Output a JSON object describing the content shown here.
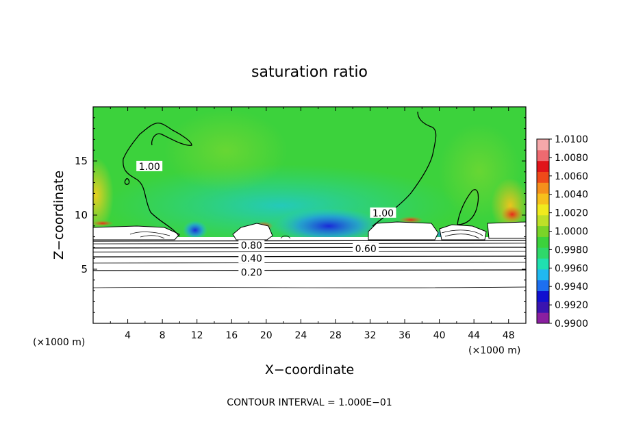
{
  "chart_data": {
    "type": "heatmap",
    "title": "saturation ratio",
    "xlabel": "X−coordinate",
    "ylabel": "Z−coordinate",
    "x_unit_left": "(×1000 m)",
    "x_unit_right": "(×1000 m)",
    "footer": "CONTOUR INTERVAL = 1.000E−01",
    "xlim": [
      0,
      50
    ],
    "ylim": [
      0,
      20
    ],
    "x_ticks": [
      4,
      8,
      12,
      16,
      20,
      24,
      28,
      32,
      36,
      40,
      44,
      48
    ],
    "y_ticks": [
      5,
      10,
      15
    ],
    "colorbar": {
      "min": 0.99,
      "max": 1.01,
      "labels": [
        "1.0100",
        "1.0080",
        "1.0060",
        "1.0040",
        "1.0020",
        "1.0000",
        "0.9980",
        "0.9960",
        "0.9940",
        "0.9920",
        "0.9900"
      ],
      "colors": [
        "#8a1fa0",
        "#3a14b0",
        "#1010d0",
        "#1d6ff0",
        "#20b8f0",
        "#20e0b0",
        "#2fd86a",
        "#3cd23c",
        "#7ad428",
        "#bee028",
        "#f0ea1e",
        "#f6c01c",
        "#f5901c",
        "#ee4a1a",
        "#e0141a",
        "#ee6a70",
        "#f5a8aa"
      ]
    },
    "contour_labels": [
      {
        "text": "1.00",
        "x": 6.5,
        "z": 14.5
      },
      {
        "text": "1.00",
        "x": 33.5,
        "z": 10.2
      },
      {
        "text": "0.80",
        "x": 18.3,
        "z": 7.2
      },
      {
        "text": "0.60",
        "x": 31.5,
        "z": 6.9
      },
      {
        "text": "0.40",
        "x": 18.3,
        "z": 6.0
      },
      {
        "text": "0.20",
        "x": 18.3,
        "z": 4.7
      }
    ]
  }
}
